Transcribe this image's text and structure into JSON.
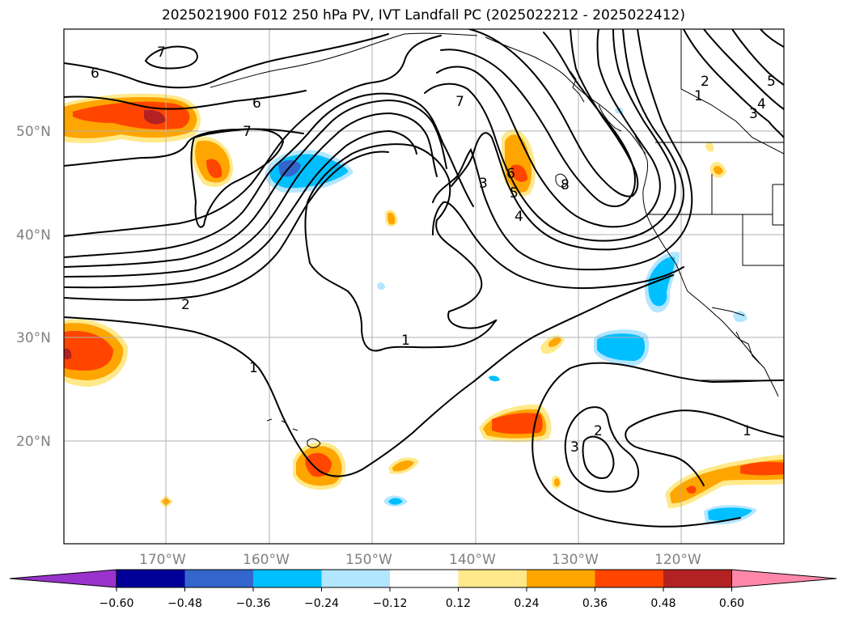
{
  "title": "2025021900 F012 250 hPa PV, IVT Landfall PC (2025022212 - 2025022412)",
  "lat_labels": [
    "50°N",
    "40°N",
    "30°N",
    "20°N"
  ],
  "lon_labels": [
    "170°W",
    "160°W",
    "150°W",
    "140°W",
    "130°W",
    "120°W"
  ],
  "contour_labels": [
    "7",
    "6",
    "6",
    "7",
    "7",
    "3",
    "5",
    "4",
    "6",
    "8",
    "2",
    "1",
    "3",
    "4",
    "5",
    "2",
    "1",
    "1",
    "2",
    "3",
    "1"
  ],
  "colorbar": {
    "ticks": [
      "−0.60",
      "−0.48",
      "−0.36",
      "−0.24",
      "−0.12",
      "0.12",
      "0.24",
      "0.36",
      "0.48",
      "0.60"
    ],
    "colors": [
      "#9933cc",
      "#000099",
      "#3366cc",
      "#00bfff",
      "#b3e6ff",
      "#ffffff",
      "#ffe98a",
      "#ffa500",
      "#ff4500",
      "#b22222",
      "#ff88aa"
    ]
  },
  "fill_colors": {
    "light_yellow": "#ffe98a",
    "orange": "#ffa500",
    "red_orange": "#ff4500",
    "dark_red": "#b22222",
    "light_blue": "#b3e6ff",
    "cyan": "#00bfff",
    "medium_blue": "#3366cc"
  }
}
